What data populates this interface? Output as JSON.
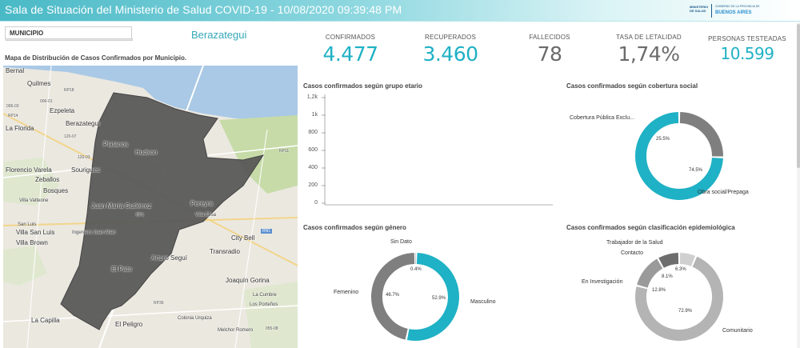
{
  "header": {
    "title": "Sala de Situación del Ministerio de Salud COVID-19 - 10/08/2020 09:39:48 PM",
    "logo": {
      "ministry": "MINISTERIO DE SALUD",
      "govt": "GOBIERNO DE LA PROVINCIA DE",
      "province": "BUENOS AIRES"
    }
  },
  "filter": {
    "label": "MUNICIPIO",
    "selected": "Berazategui"
  },
  "map": {
    "title": "Mapa de Distribución de Casos Confirmados por Municipio.",
    "places": [
      "Bernal",
      "Quilmes",
      "Ezpeleta",
      "La Florida",
      "Berazategui",
      "Platanos",
      "Hudson",
      "Sourigues",
      "Florencio Varela",
      "Zeballos",
      "Bosques",
      "Villa Vatteone",
      "Juan María Gutiérrez",
      "Pereyra",
      "Villa Elisa",
      "San Luis",
      "Villa San Luis",
      "Villa Brown",
      "Ingeniero Juan Allan",
      "City Bell",
      "Transradio",
      "Arturo Seguí",
      "El Pato",
      "Joaquín Gorina",
      "La Cumbre",
      "Los Porteños",
      "La Capilla",
      "El Peligro",
      "Colonia Urquiza",
      "Melchor Romero"
    ],
    "road_labels": [
      "RP18",
      "RP14",
      "RP11",
      "RP1",
      "RP36",
      "RN1",
      "006-03",
      "006-01",
      "120-07",
      "120-03",
      "055-08"
    ],
    "colors": {
      "water": "#a9c9e6",
      "land": "#ebe8e0",
      "region": "#555555",
      "green": "#c7dba8"
    }
  },
  "kpis": [
    {
      "label": "CONFIRMADOS",
      "value": "4.477",
      "color": "#1fb1c5"
    },
    {
      "label": "RECUPERADOS",
      "value": "3.460",
      "color": "#1fb1c5"
    },
    {
      "label": "FALLECIDOS",
      "value": "78",
      "color": "#6b6b6b"
    },
    {
      "label": "TASA DE LETALIDAD",
      "value": "1,74%",
      "color": "#6b6b6b"
    },
    {
      "label": "PERSONAS TESTEADAS",
      "value": "10.599",
      "color": "#1fb1c5"
    }
  ],
  "panels": {
    "edad": {
      "title": "Casos confirmados según grupo etario",
      "yticks": [
        "1,2k",
        "1k",
        "800",
        "600",
        "400",
        "200",
        "0"
      ]
    },
    "cobertura": {
      "title": "Casos confirmados según cobertura social"
    },
    "genero": {
      "title": "Casos confirmados según género"
    },
    "clasificacion": {
      "title": "Casos confirmados según clasificación epidemiológica"
    }
  },
  "chart_data": [
    {
      "type": "bar",
      "title": "Casos confirmados según grupo etario",
      "categories": [],
      "values": [],
      "ylim": [
        0,
        1200
      ],
      "yticks": [
        "1,2k",
        "1k",
        "800",
        "600",
        "400",
        "200",
        "0"
      ]
    },
    {
      "type": "pie",
      "title": "Casos confirmados según cobertura social",
      "labels": [
        "Cobertura Pública Exclu...",
        "Obra social/Prepaga"
      ],
      "values": [
        25.5,
        74.5
      ],
      "pct_labels": [
        "25.5%",
        "74.5%"
      ],
      "colors": [
        "#7f7f7f",
        "#1fb1c5"
      ]
    },
    {
      "type": "pie",
      "title": "Casos confirmados según género",
      "labels": [
        "Sin Dato",
        "Masculino",
        "Femenino"
      ],
      "values": [
        0.4,
        52.9,
        46.7
      ],
      "pct_labels": [
        "0.4%",
        "52.9%",
        "46.7%"
      ],
      "colors": [
        "#bdbdbd",
        "#1fb1c5",
        "#7f7f7f"
      ]
    },
    {
      "type": "pie",
      "title": "Casos confirmados según clasificación epidemiológica",
      "labels": [
        "Trabajador de la Salud",
        "Comunitario",
        "En Investigación",
        "Contacto"
      ],
      "values": [
        6.3,
        72.9,
        12.8,
        8.1
      ],
      "pct_labels": [
        "6.3%",
        "72.9%",
        "12.8%",
        "8.1%"
      ],
      "colors": [
        "#d0d0d0",
        "#b4b4b4",
        "#9a9a9a",
        "#6d6d6d"
      ]
    }
  ]
}
